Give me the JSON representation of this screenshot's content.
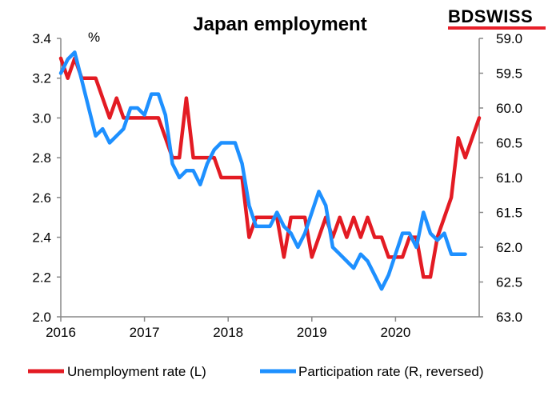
{
  "brand": {
    "text": "BDSWISS",
    "color": "#e8202a"
  },
  "chart_data": {
    "type": "line",
    "title": "Japan employment",
    "left_axis_unit": "%",
    "x_tick_labels": [
      "2016",
      "2017",
      "2018",
      "2019",
      "2020"
    ],
    "x_range": [
      2016.0,
      2021.0
    ],
    "left_ylim": [
      2.0,
      3.4
    ],
    "left_ticks": [
      "2.0",
      "2.2",
      "2.4",
      "2.6",
      "2.8",
      "3.0",
      "3.2",
      "3.4"
    ],
    "right_ylim": [
      59.0,
      63.0
    ],
    "right_axis_reversed": true,
    "right_ticks": [
      "59.0",
      "59.5",
      "60.0",
      "60.5",
      "61.0",
      "61.5",
      "62.0",
      "62.5",
      "63.0"
    ],
    "grid": false,
    "legend_position": "bottom",
    "series": [
      {
        "name": "Unemployment rate (L)",
        "axis": "left",
        "color": "#e31b23",
        "start": "2016-01",
        "frequency": "monthly",
        "values": [
          3.3,
          3.2,
          3.3,
          3.2,
          3.2,
          3.2,
          3.1,
          3.0,
          3.1,
          3.0,
          3.0,
          3.0,
          3.0,
          3.0,
          3.0,
          2.9,
          2.8,
          2.8,
          3.1,
          2.8,
          2.8,
          2.8,
          2.8,
          2.7,
          2.7,
          2.7,
          2.7,
          2.4,
          2.5,
          2.5,
          2.5,
          2.5,
          2.3,
          2.5,
          2.5,
          2.5,
          2.3,
          2.4,
          2.5,
          2.4,
          2.5,
          2.4,
          2.5,
          2.4,
          2.5,
          2.4,
          2.4,
          2.3,
          2.3,
          2.3,
          2.4,
          2.4,
          2.2,
          2.2,
          2.4,
          2.5,
          2.6,
          2.9,
          2.8,
          2.9,
          3.0
        ]
      },
      {
        "name": "Participation rate (R, reversed)",
        "axis": "right",
        "color": "#1e90ff",
        "start": "2016-01",
        "frequency": "monthly",
        "values": [
          59.5,
          59.3,
          59.2,
          59.6,
          60.0,
          60.4,
          60.3,
          60.5,
          60.4,
          60.3,
          60.0,
          60.0,
          60.1,
          59.8,
          59.8,
          60.1,
          60.8,
          61.0,
          60.9,
          60.9,
          61.1,
          60.8,
          60.6,
          60.5,
          60.5,
          60.5,
          60.8,
          61.4,
          61.7,
          61.7,
          61.7,
          61.5,
          61.7,
          61.8,
          62.0,
          61.8,
          61.5,
          61.2,
          61.4,
          62.0,
          62.1,
          62.2,
          62.3,
          62.1,
          62.2,
          62.4,
          62.6,
          62.4,
          62.1,
          61.8,
          61.8,
          62.0,
          61.5,
          61.8,
          61.9,
          61.8,
          62.1,
          62.1,
          62.1
        ]
      }
    ]
  }
}
